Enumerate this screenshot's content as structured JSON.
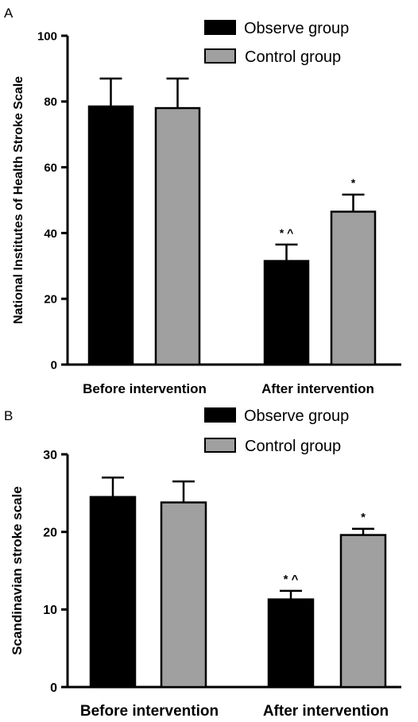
{
  "chart_data": [
    {
      "panel": "A",
      "type": "bar",
      "ylabel": "National Institutes of Health Stroke Scale",
      "ylim": [
        0,
        100
      ],
      "yticks": [
        0,
        20,
        40,
        60,
        80,
        100
      ],
      "categories": [
        "Before intervention",
        "After intervention"
      ],
      "series": [
        {
          "name": "Observe group",
          "color": "#000000",
          "values": [
            78.5,
            31.5
          ],
          "errors": [
            8.5,
            5.0
          ]
        },
        {
          "name": "Control group",
          "color": "#a0a0a0",
          "values": [
            78,
            46.5
          ],
          "errors": [
            9,
            5.2
          ]
        }
      ],
      "annotations": [
        {
          "category": 1,
          "series": 0,
          "text": "* ^"
        },
        {
          "category": 1,
          "series": 1,
          "text": "*"
        }
      ],
      "legend": "top-right"
    },
    {
      "panel": "B",
      "type": "bar",
      "ylabel": "Scandinavian stroke scale",
      "ylim": [
        0,
        30
      ],
      "yticks": [
        0,
        10,
        20,
        30
      ],
      "categories": [
        "Before intervention",
        "After intervention"
      ],
      "series": [
        {
          "name": "Observe group",
          "color": "#000000",
          "values": [
            24.5,
            11.3
          ],
          "errors": [
            2.5,
            1.1
          ]
        },
        {
          "name": "Control group",
          "color": "#a0a0a0",
          "values": [
            23.8,
            19.6
          ],
          "errors": [
            2.7,
            0.8
          ]
        }
      ],
      "annotations": [
        {
          "category": 1,
          "series": 0,
          "text": "* ^"
        },
        {
          "category": 1,
          "series": 1,
          "text": "*"
        }
      ],
      "legend": "top-right"
    }
  ]
}
